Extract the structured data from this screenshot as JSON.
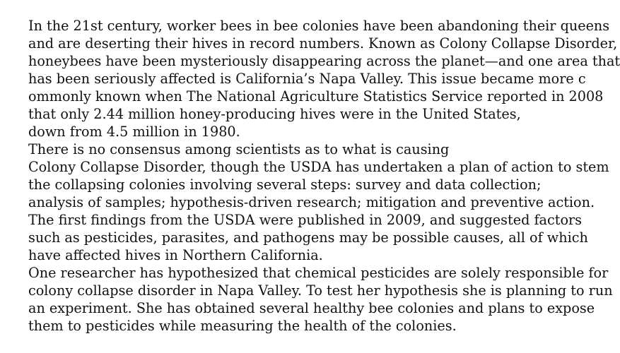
{
  "document": {
    "lines": [
      "In the 21st century, worker bees in bee colonies have been abandoning their queens",
      "and are deserting their hives in record numbers. Known as Colony Collapse Disorder,",
      "honeybees have been mysteriously disappearing across the planet—and one area that",
      "has been seriously affected is California’s Napa Valley. This issue became more c",
      "ommonly known when The National Agriculture Statistics Service reported in 2008",
      "that only 2.44 million honey-producing hives were in the United States,",
      "down from 4.5 million in 1980.",
      "There is no consensus among scientists as to what is causing",
      "Colony Collapse Disorder, though the USDA has undertaken a plan of action to stem",
      "the collapsing colonies involving several steps: survey and data collection;",
      "analysis of samples; hypothesis-driven research; mitigation and preventive action.",
      "The first findings from the USDA were published in 2009, and suggested factors",
      "such as pesticides, parasites, and pathogens may be possible causes, all of which",
      "have affected hives in Northern California.",
      "One researcher has hypothesized that chemical pesticides are solely responsible for",
      "colony collapse disorder in Napa Valley. To test her hypothesis she is planning to run",
      "an experiment. She has obtained several healthy bee colonies and plans to expose",
      "them to pesticides while measuring the health of the colonies."
    ]
  }
}
